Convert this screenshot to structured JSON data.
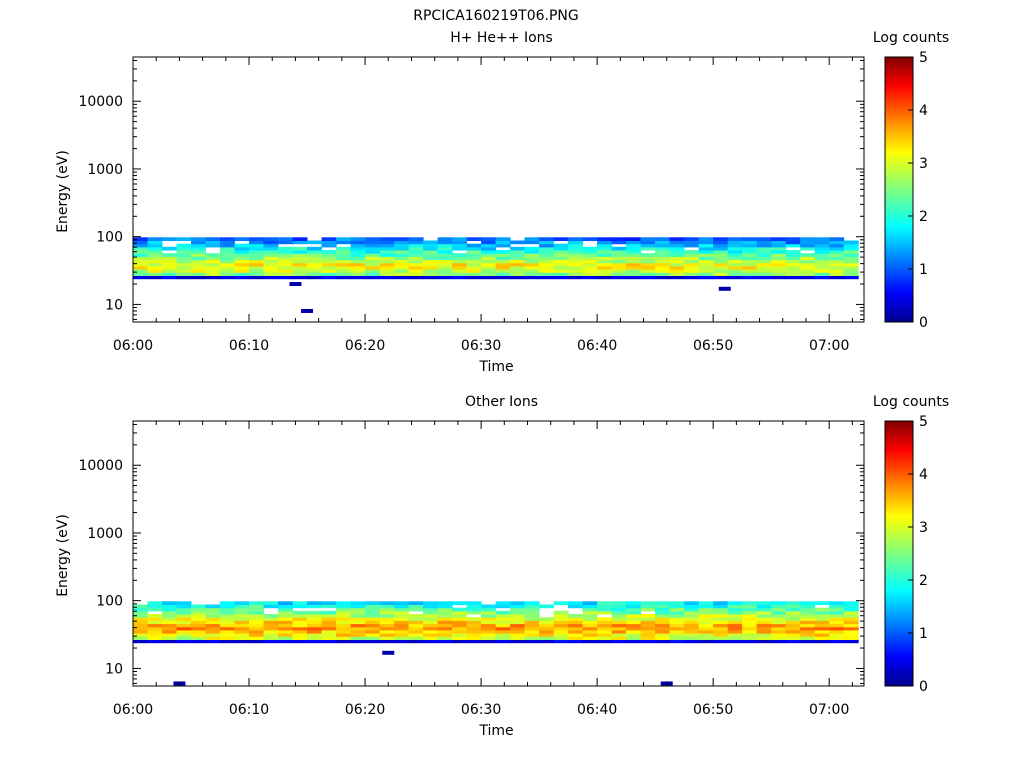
{
  "figure_title": "RPCICA160219T06.PNG",
  "chart_data": [
    {
      "type": "heatmap",
      "title": "H+ He++ Ions",
      "xlabel": "Time",
      "ylabel": "Energy (eV)",
      "x_range": [
        "06:00",
        "07:03"
      ],
      "x_ticks": [
        "06:00",
        "06:10",
        "06:20",
        "06:30",
        "06:40",
        "06:50",
        "07:00"
      ],
      "y_scale": "log",
      "y_range": [
        5.5,
        45000
      ],
      "y_ticks": [
        "10",
        "100",
        "1000",
        "10000"
      ],
      "colorbar": {
        "label": "Log counts",
        "range": [
          0,
          5
        ],
        "ticks": [
          "0",
          "1",
          "2",
          "3",
          "4",
          "5"
        ]
      },
      "energy_band_eV": [
        24,
        98
      ],
      "peak_energy_eV": 37,
      "peak_log_counts": 3.2,
      "isolated_points": [
        {
          "time": "06:14",
          "energy_eV": 20,
          "log_counts": 0.2
        },
        {
          "time": "06:15",
          "energy_eV": 8,
          "log_counts": 0.2
        },
        {
          "time": "06:51",
          "energy_eV": 17,
          "log_counts": 0.2
        }
      ]
    },
    {
      "type": "heatmap",
      "title": "Other Ions",
      "xlabel": "Time",
      "ylabel": "Energy (eV)",
      "x_range": [
        "06:00",
        "07:03"
      ],
      "x_ticks": [
        "06:00",
        "06:10",
        "06:20",
        "06:30",
        "06:40",
        "06:50",
        "07:00"
      ],
      "y_scale": "log",
      "y_range": [
        5.5,
        45000
      ],
      "y_ticks": [
        "10",
        "100",
        "1000",
        "10000"
      ],
      "colorbar": {
        "label": "Log counts",
        "range": [
          0,
          5
        ],
        "ticks": [
          "0",
          "1",
          "2",
          "3",
          "4",
          "5"
        ]
      },
      "energy_band_eV": [
        24,
        98
      ],
      "peak_energy_eV": 40,
      "peak_log_counts": 3.7,
      "isolated_points": [
        {
          "time": "06:04",
          "energy_eV": 6,
          "log_counts": 0.2
        },
        {
          "time": "06:22",
          "energy_eV": 17,
          "log_counts": 0.2
        },
        {
          "time": "06:46",
          "energy_eV": 6,
          "log_counts": 0.2
        }
      ]
    }
  ]
}
